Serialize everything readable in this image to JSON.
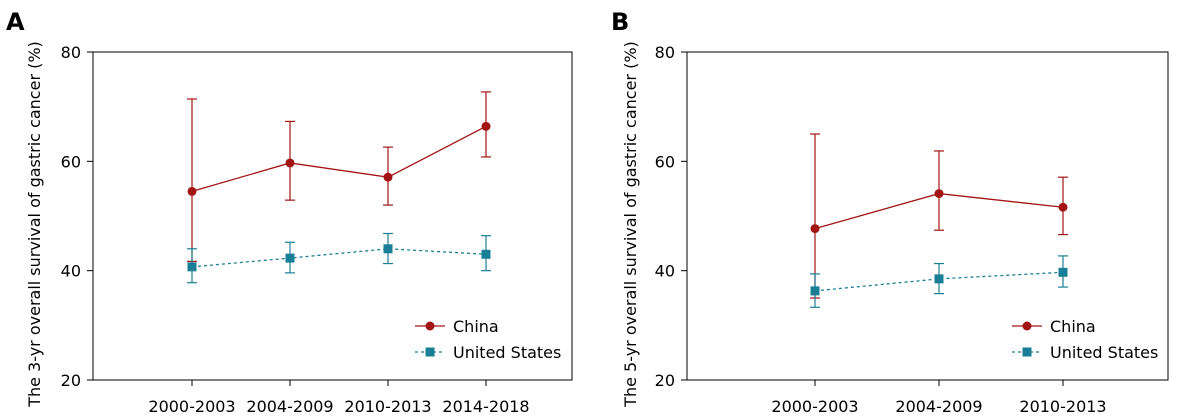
{
  "colors": {
    "china": "#a31515",
    "united_states": "#1a7f96",
    "axis": "#000000"
  },
  "chart_data": [
    {
      "panel": "A",
      "type": "line",
      "ylabel": "The 3-yr overall survival of gastric cancer (%)",
      "ylim": [
        20,
        80
      ],
      "yticks": [
        20,
        40,
        60,
        80
      ],
      "categories": [
        "2000-2003",
        "2004-2009",
        "2010-2013",
        "2014-2018"
      ],
      "legend_position": "bottom-right",
      "grid": false,
      "series": [
        {
          "name": "China",
          "marker": "circle",
          "line": "solid",
          "color": "#a31515",
          "values": [
            54.5,
            59.7,
            57.1,
            66.4
          ],
          "lower": [
            41.7,
            52.9,
            52.0,
            60.8
          ],
          "upper": [
            71.4,
            67.3,
            62.6,
            72.7
          ]
        },
        {
          "name": "United States",
          "marker": "square",
          "line": "dotted",
          "color": "#1a7f96",
          "values": [
            40.7,
            42.3,
            44.0,
            43.0
          ],
          "lower": [
            37.8,
            39.6,
            41.3,
            40.0
          ],
          "upper": [
            44.0,
            45.2,
            46.8,
            46.4
          ]
        }
      ]
    },
    {
      "panel": "B",
      "type": "line",
      "ylabel": "The 5-yr overall survival of gastric cancer (%)",
      "ylim": [
        20,
        80
      ],
      "yticks": [
        20,
        40,
        60,
        80
      ],
      "categories": [
        "2000-2003",
        "2004-2009",
        "2010-2013"
      ],
      "legend_position": "bottom-right",
      "grid": false,
      "series": [
        {
          "name": "China",
          "marker": "circle",
          "line": "solid",
          "color": "#a31515",
          "values": [
            47.7,
            54.1,
            51.6
          ],
          "lower": [
            35.0,
            47.4,
            46.6
          ],
          "upper": [
            65.0,
            61.9,
            57.1
          ]
        },
        {
          "name": "United States",
          "marker": "square",
          "line": "dotted",
          "color": "#1a7f96",
          "values": [
            36.3,
            38.5,
            39.7
          ],
          "lower": [
            33.3,
            35.8,
            37.0
          ],
          "upper": [
            39.4,
            41.3,
            42.7
          ]
        }
      ]
    }
  ]
}
